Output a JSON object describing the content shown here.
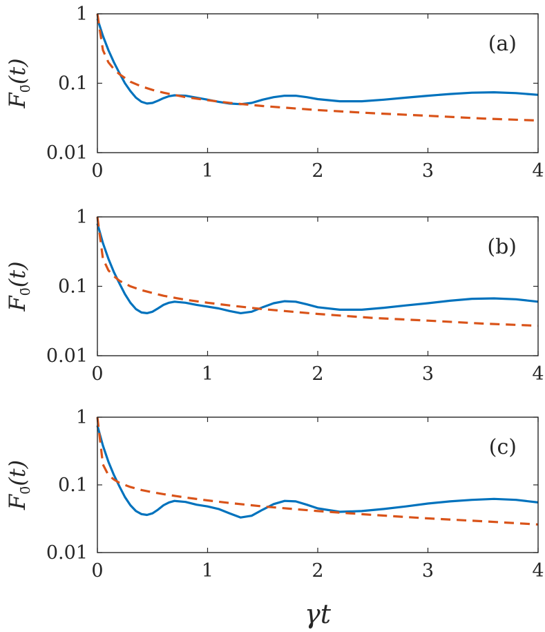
{
  "chart_data": [
    {
      "type": "line",
      "panel_label": "(a)",
      "ylabel": "F_0̄(t)",
      "ylabel_main": "F",
      "ylabel_sub": "0̄",
      "ylabel_arg": "(t)",
      "xlabel": "",
      "xlim": [
        0,
        4
      ],
      "ylim": [
        0.01,
        1
      ],
      "yscale": "log",
      "xticks": [
        "0",
        "1",
        "2",
        "3",
        "4"
      ],
      "yticks": [
        "0.01",
        "0.1",
        "1"
      ],
      "series": [
        {
          "name": "solid",
          "style": "solid",
          "color": "#0072BD",
          "x": [
            0,
            0.05,
            0.1,
            0.15,
            0.2,
            0.25,
            0.3,
            0.35,
            0.4,
            0.45,
            0.5,
            0.55,
            0.6,
            0.65,
            0.7,
            0.8,
            0.9,
            1.0,
            1.1,
            1.2,
            1.3,
            1.4,
            1.5,
            1.6,
            1.7,
            1.8,
            1.9,
            2.0,
            2.2,
            2.4,
            2.6,
            2.8,
            3.0,
            3.2,
            3.4,
            3.6,
            3.8,
            4.0
          ],
          "y": [
            0.85,
            0.48,
            0.3,
            0.2,
            0.14,
            0.1,
            0.077,
            0.062,
            0.054,
            0.051,
            0.052,
            0.056,
            0.061,
            0.065,
            0.067,
            0.066,
            0.062,
            0.058,
            0.054,
            0.051,
            0.05,
            0.052,
            0.058,
            0.063,
            0.066,
            0.066,
            0.063,
            0.059,
            0.055,
            0.055,
            0.058,
            0.062,
            0.066,
            0.07,
            0.073,
            0.074,
            0.072,
            0.068
          ]
        },
        {
          "name": "dashed",
          "style": "dashed",
          "color": "#D95319",
          "x": [
            0,
            0.05,
            0.1,
            0.15,
            0.2,
            0.3,
            0.4,
            0.5,
            0.6,
            0.8,
            1.0,
            1.2,
            1.5,
            2.0,
            2.5,
            3.0,
            3.5,
            4.0
          ],
          "y": [
            1.0,
            0.3,
            0.2,
            0.16,
            0.135,
            0.105,
            0.09,
            0.08,
            0.073,
            0.063,
            0.057,
            0.052,
            0.047,
            0.041,
            0.037,
            0.034,
            0.031,
            0.029
          ]
        }
      ]
    },
    {
      "type": "line",
      "panel_label": "(b)",
      "ylabel": "F_0̄(t)",
      "ylabel_main": "F",
      "ylabel_sub": "0̄",
      "ylabel_arg": "(t)",
      "xlabel": "",
      "xlim": [
        0,
        4
      ],
      "ylim": [
        0.01,
        1
      ],
      "yscale": "log",
      "xticks": [
        "0",
        "1",
        "2",
        "3",
        "4"
      ],
      "yticks": [
        "0.01",
        "0.1",
        "1"
      ],
      "series": [
        {
          "name": "solid",
          "style": "solid",
          "color": "#0072BD",
          "x": [
            0,
            0.05,
            0.1,
            0.15,
            0.2,
            0.25,
            0.3,
            0.35,
            0.4,
            0.45,
            0.5,
            0.55,
            0.6,
            0.65,
            0.7,
            0.8,
            0.9,
            1.0,
            1.1,
            1.2,
            1.3,
            1.4,
            1.5,
            1.6,
            1.7,
            1.8,
            1.9,
            2.0,
            2.2,
            2.4,
            2.6,
            2.8,
            3.0,
            3.2,
            3.4,
            3.6,
            3.8,
            4.0
          ],
          "y": [
            0.8,
            0.42,
            0.25,
            0.16,
            0.11,
            0.077,
            0.058,
            0.047,
            0.042,
            0.041,
            0.043,
            0.048,
            0.054,
            0.058,
            0.06,
            0.058,
            0.054,
            0.051,
            0.048,
            0.044,
            0.041,
            0.043,
            0.05,
            0.057,
            0.061,
            0.06,
            0.055,
            0.05,
            0.046,
            0.046,
            0.049,
            0.053,
            0.057,
            0.062,
            0.066,
            0.067,
            0.065,
            0.06
          ]
        },
        {
          "name": "dashed",
          "style": "dashed",
          "color": "#D95319",
          "x": [
            0,
            0.05,
            0.1,
            0.15,
            0.2,
            0.3,
            0.4,
            0.5,
            0.6,
            0.8,
            1.0,
            1.2,
            1.5,
            2.0,
            2.5,
            3.0,
            3.5,
            4.0
          ],
          "y": [
            1.0,
            0.25,
            0.17,
            0.14,
            0.12,
            0.1,
            0.088,
            0.08,
            0.073,
            0.064,
            0.058,
            0.053,
            0.047,
            0.04,
            0.035,
            0.032,
            0.029,
            0.027
          ]
        }
      ]
    },
    {
      "type": "line",
      "panel_label": "(c)",
      "ylabel": "F_0̄(t)",
      "ylabel_main": "F",
      "ylabel_sub": "0̄",
      "ylabel_arg": "(t)",
      "xlabel": "γt",
      "xlim": [
        0,
        4
      ],
      "ylim": [
        0.01,
        1
      ],
      "yscale": "log",
      "xticks": [
        "0",
        "1",
        "2",
        "3",
        "4"
      ],
      "yticks": [
        "0.01",
        "0.1",
        "1"
      ],
      "series": [
        {
          "name": "solid",
          "style": "solid",
          "color": "#0072BD",
          "x": [
            0,
            0.05,
            0.1,
            0.15,
            0.2,
            0.25,
            0.3,
            0.35,
            0.4,
            0.45,
            0.5,
            0.55,
            0.6,
            0.65,
            0.7,
            0.8,
            0.9,
            1.0,
            1.1,
            1.2,
            1.3,
            1.4,
            1.5,
            1.6,
            1.7,
            1.8,
            1.9,
            2.0,
            2.2,
            2.4,
            2.6,
            2.8,
            3.0,
            3.2,
            3.4,
            3.6,
            3.8,
            4.0
          ],
          "y": [
            0.75,
            0.38,
            0.22,
            0.14,
            0.095,
            0.066,
            0.05,
            0.041,
            0.037,
            0.036,
            0.038,
            0.043,
            0.05,
            0.055,
            0.058,
            0.056,
            0.051,
            0.048,
            0.044,
            0.038,
            0.033,
            0.035,
            0.043,
            0.052,
            0.058,
            0.057,
            0.051,
            0.045,
            0.04,
            0.041,
            0.044,
            0.048,
            0.053,
            0.057,
            0.06,
            0.062,
            0.06,
            0.055
          ]
        },
        {
          "name": "dashed",
          "style": "dashed",
          "color": "#D95319",
          "x": [
            0,
            0.05,
            0.1,
            0.15,
            0.2,
            0.3,
            0.4,
            0.5,
            0.6,
            0.8,
            1.0,
            1.2,
            1.5,
            2.0,
            2.5,
            3.0,
            3.5,
            4.0
          ],
          "y": [
            1.0,
            0.2,
            0.14,
            0.12,
            0.107,
            0.093,
            0.084,
            0.078,
            0.073,
            0.065,
            0.059,
            0.054,
            0.048,
            0.041,
            0.036,
            0.032,
            0.029,
            0.026
          ]
        }
      ]
    }
  ]
}
